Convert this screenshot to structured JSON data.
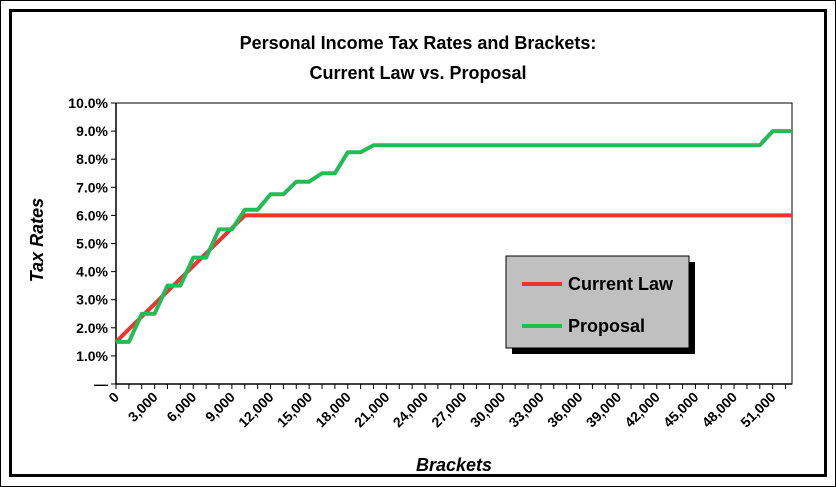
{
  "chart_data": {
    "type": "line",
    "title": [
      "Personal Income Tax Rates and Brackets:",
      "Current Law vs. Proposal"
    ],
    "xlabel": "Brackets",
    "ylabel": "Tax Rates",
    "xlim": [
      0,
      52500
    ],
    "ylim": [
      0,
      10
    ],
    "x_ticks": [
      0,
      3000,
      6000,
      9000,
      12000,
      15000,
      18000,
      21000,
      24000,
      27000,
      30000,
      33000,
      36000,
      39000,
      42000,
      45000,
      48000,
      51000
    ],
    "x_tick_labels": [
      "0",
      "3,000",
      "6,000",
      "9,000",
      "12,000",
      "15,000",
      "18,000",
      "21,000",
      "24,000",
      "27,000",
      "30,000",
      "33,000",
      "36,000",
      "39,000",
      "42,000",
      "45,000",
      "48,000",
      "51,000"
    ],
    "y_ticks": [
      0,
      1,
      2,
      3,
      4,
      5,
      6,
      7,
      8,
      9,
      10
    ],
    "y_tick_labels": [
      "—",
      "1.0%",
      "2.0%",
      "3.0%",
      "4.0%",
      "5.0%",
      "6.0%",
      "7.0%",
      "8.0%",
      "9.0%",
      "10.0%"
    ],
    "legend_position": "lower-right",
    "series": [
      {
        "name": "Current Law",
        "color": "#ee3333",
        "x": [
          0,
          10000,
          52500
        ],
        "y": [
          1.5,
          6.0,
          6.0
        ]
      },
      {
        "name": "Proposal",
        "color": "#22bb55",
        "x": [
          0,
          1000,
          2000,
          3000,
          4000,
          5000,
          6000,
          7000,
          8000,
          9000,
          10000,
          11000,
          12000,
          13000,
          14000,
          15000,
          16000,
          17000,
          18000,
          19000,
          20000,
          50000,
          51000,
          52500
        ],
        "y": [
          1.5,
          1.5,
          2.5,
          2.5,
          3.5,
          3.5,
          4.5,
          4.5,
          5.5,
          5.5,
          6.2,
          6.2,
          6.75,
          6.75,
          7.2,
          7.2,
          7.5,
          7.5,
          8.25,
          8.25,
          8.5,
          8.5,
          9.0,
          9.0
        ],
        "step": true
      }
    ]
  }
}
